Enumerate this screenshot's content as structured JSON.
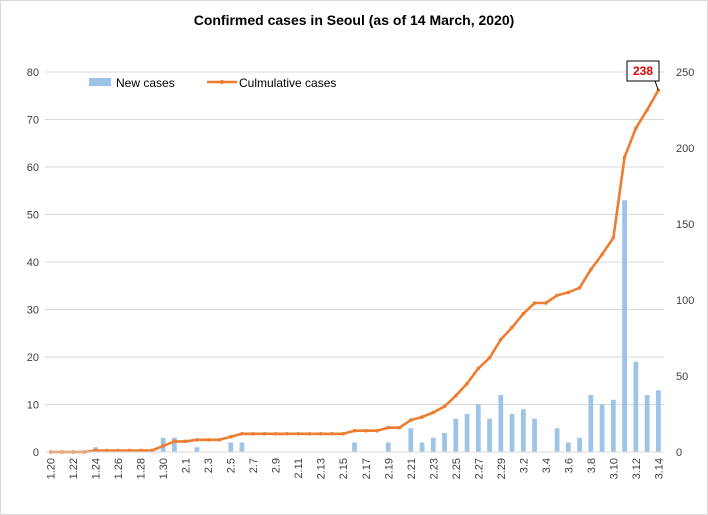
{
  "chart_data": {
    "type": "bar+line",
    "title": "Confirmed cases in Seoul (as of 14 March, 2020)",
    "categories": [
      "1.20",
      "1.21",
      "1.22",
      "1.23",
      "1.24",
      "1.25",
      "1.26",
      "1.27",
      "1.28",
      "1.29",
      "1.30",
      "1.31",
      "2.1",
      "2.2",
      "2.3",
      "2.4",
      "2.5",
      "2.6",
      "2.7",
      "2.8",
      "2.9",
      "2.10",
      "2.11",
      "2.12",
      "2.13",
      "2.14",
      "2.15",
      "2.16",
      "2.17",
      "2.18",
      "2.19",
      "2.20",
      "2.21",
      "2.22",
      "2.23",
      "2.24",
      "2.25",
      "2.26",
      "2.27",
      "2.28",
      "2.29",
      "3.1",
      "3.2",
      "3.3",
      "3.4",
      "3.5",
      "3.6",
      "3.7",
      "3.8",
      "3.9",
      "3.10",
      "3.11",
      "3.12",
      "3.13",
      "3.14"
    ],
    "tick_labels": [
      "1.20",
      "1.22",
      "1.24",
      "1.26",
      "1.28",
      "1.30",
      "2.1",
      "2.3",
      "2.5",
      "2.7",
      "2.9",
      "2.11",
      "2.13",
      "2.15",
      "2.17",
      "2.19",
      "2.21",
      "2.23",
      "2.25",
      "2.27",
      "2.29",
      "3.2",
      "3.4",
      "3.6",
      "3.8",
      "3.10",
      "3.12",
      "3.14"
    ],
    "series": [
      {
        "name": "New cases",
        "axis": "left",
        "color": "#9dc3e6",
        "values": [
          0,
          0,
          0,
          0,
          1,
          0,
          0,
          0,
          0,
          0,
          3,
          3,
          0,
          1,
          0,
          0,
          2,
          2,
          0,
          0,
          0,
          0,
          0,
          0,
          0,
          0,
          0,
          2,
          0,
          0,
          2,
          0,
          5,
          2,
          3,
          4,
          7,
          8,
          10,
          7,
          12,
          8,
          9,
          7,
          0,
          5,
          2,
          3,
          12,
          10,
          11,
          53,
          19,
          12,
          13
        ]
      },
      {
        "name": "Culmulative cases",
        "axis": "right",
        "color": "#ed7d31",
        "values": [
          0,
          0,
          0,
          0,
          1,
          1,
          1,
          1,
          1,
          1,
          4,
          7,
          7,
          8,
          8,
          8,
          10,
          12,
          12,
          12,
          12,
          12,
          12,
          12,
          12,
          12,
          12,
          14,
          14,
          14,
          16,
          16,
          21,
          23,
          26,
          30,
          37,
          45,
          55,
          62,
          74,
          82,
          91,
          98,
          98,
          103,
          105,
          108,
          120,
          130,
          141,
          194,
          213,
          225,
          238
        ]
      }
    ],
    "y_left": {
      "min": 0,
      "max": 80,
      "ticks": [
        0,
        10,
        20,
        30,
        40,
        50,
        60,
        70,
        80
      ]
    },
    "y_right": {
      "min": 0,
      "max": 250,
      "ticks": [
        0,
        50,
        100,
        150,
        200,
        250
      ]
    },
    "grid": true,
    "legend_position": "top-left",
    "callout": {
      "category": "3.14",
      "label": "238"
    }
  }
}
